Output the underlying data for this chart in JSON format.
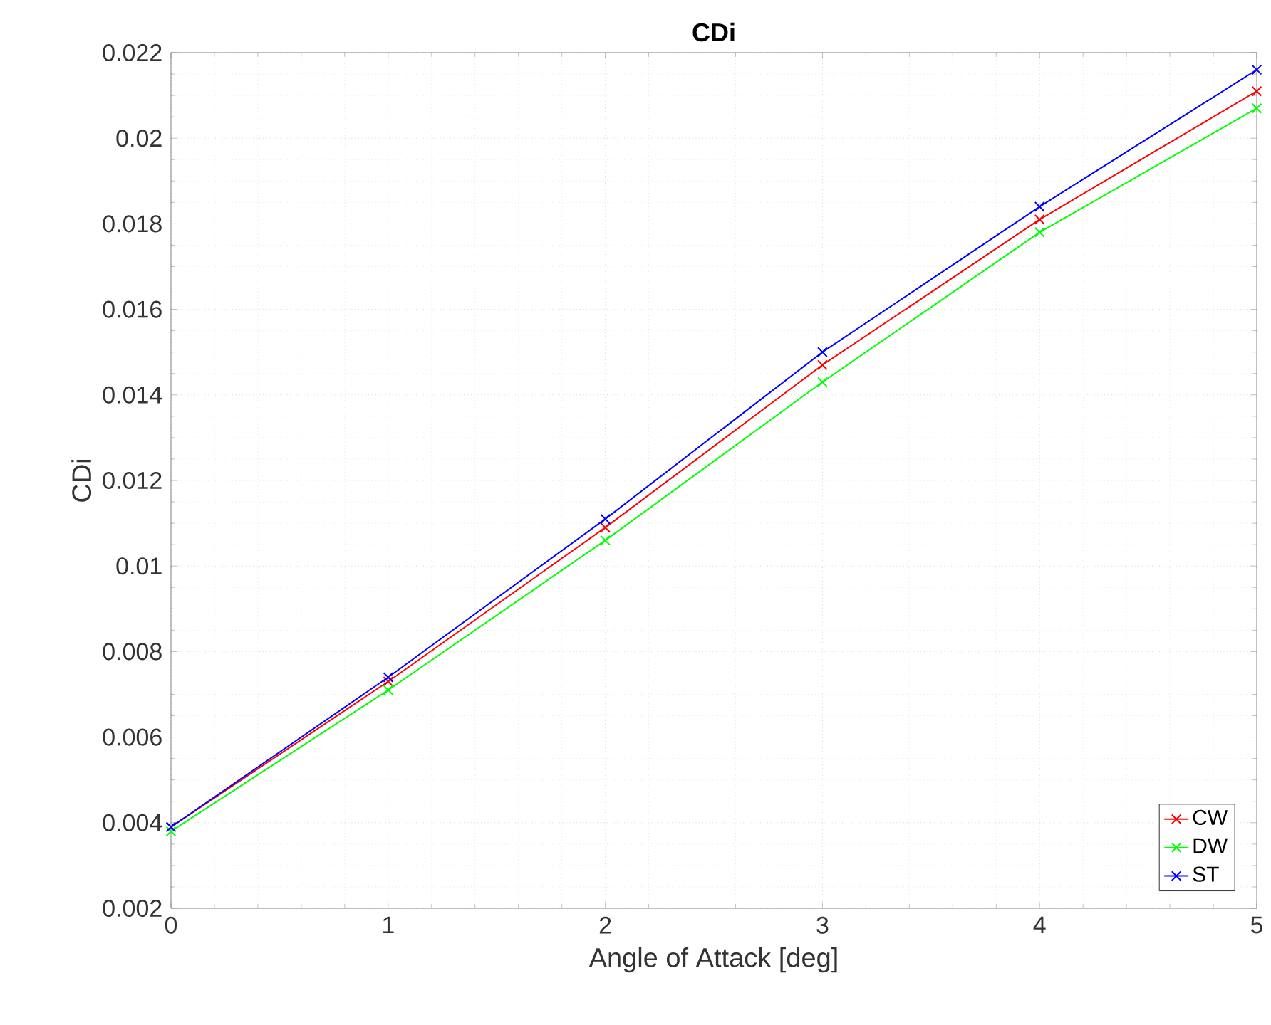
{
  "chart_data": {
    "type": "line",
    "title": "CDi",
    "xlabel": "Angle of Attack [deg]",
    "ylabel": "CDi",
    "x": [
      0,
      1,
      2,
      3,
      4,
      5
    ],
    "series": [
      {
        "name": "CW",
        "color": "#ff0000",
        "values": [
          0.0039,
          0.0073,
          0.0109,
          0.0147,
          0.0181,
          0.0211
        ]
      },
      {
        "name": "DW",
        "color": "#00ff00",
        "values": [
          0.0038,
          0.0071,
          0.0106,
          0.0143,
          0.0178,
          0.0207
        ]
      },
      {
        "name": "ST",
        "color": "#0000ff",
        "values": [
          0.0039,
          0.0074,
          0.0111,
          0.015,
          0.0184,
          0.0216
        ]
      }
    ],
    "xlim": [
      0,
      5
    ],
    "ylim": [
      0.002,
      0.022
    ],
    "xticks": [
      0,
      1,
      2,
      3,
      4,
      5
    ],
    "yticks": [
      0.002,
      0.004,
      0.006,
      0.008,
      0.01,
      0.012,
      0.014,
      0.016,
      0.018,
      0.02,
      0.022
    ],
    "grid": true,
    "legend": "bottom right",
    "marker": "cross",
    "line_style": "solid"
  }
}
